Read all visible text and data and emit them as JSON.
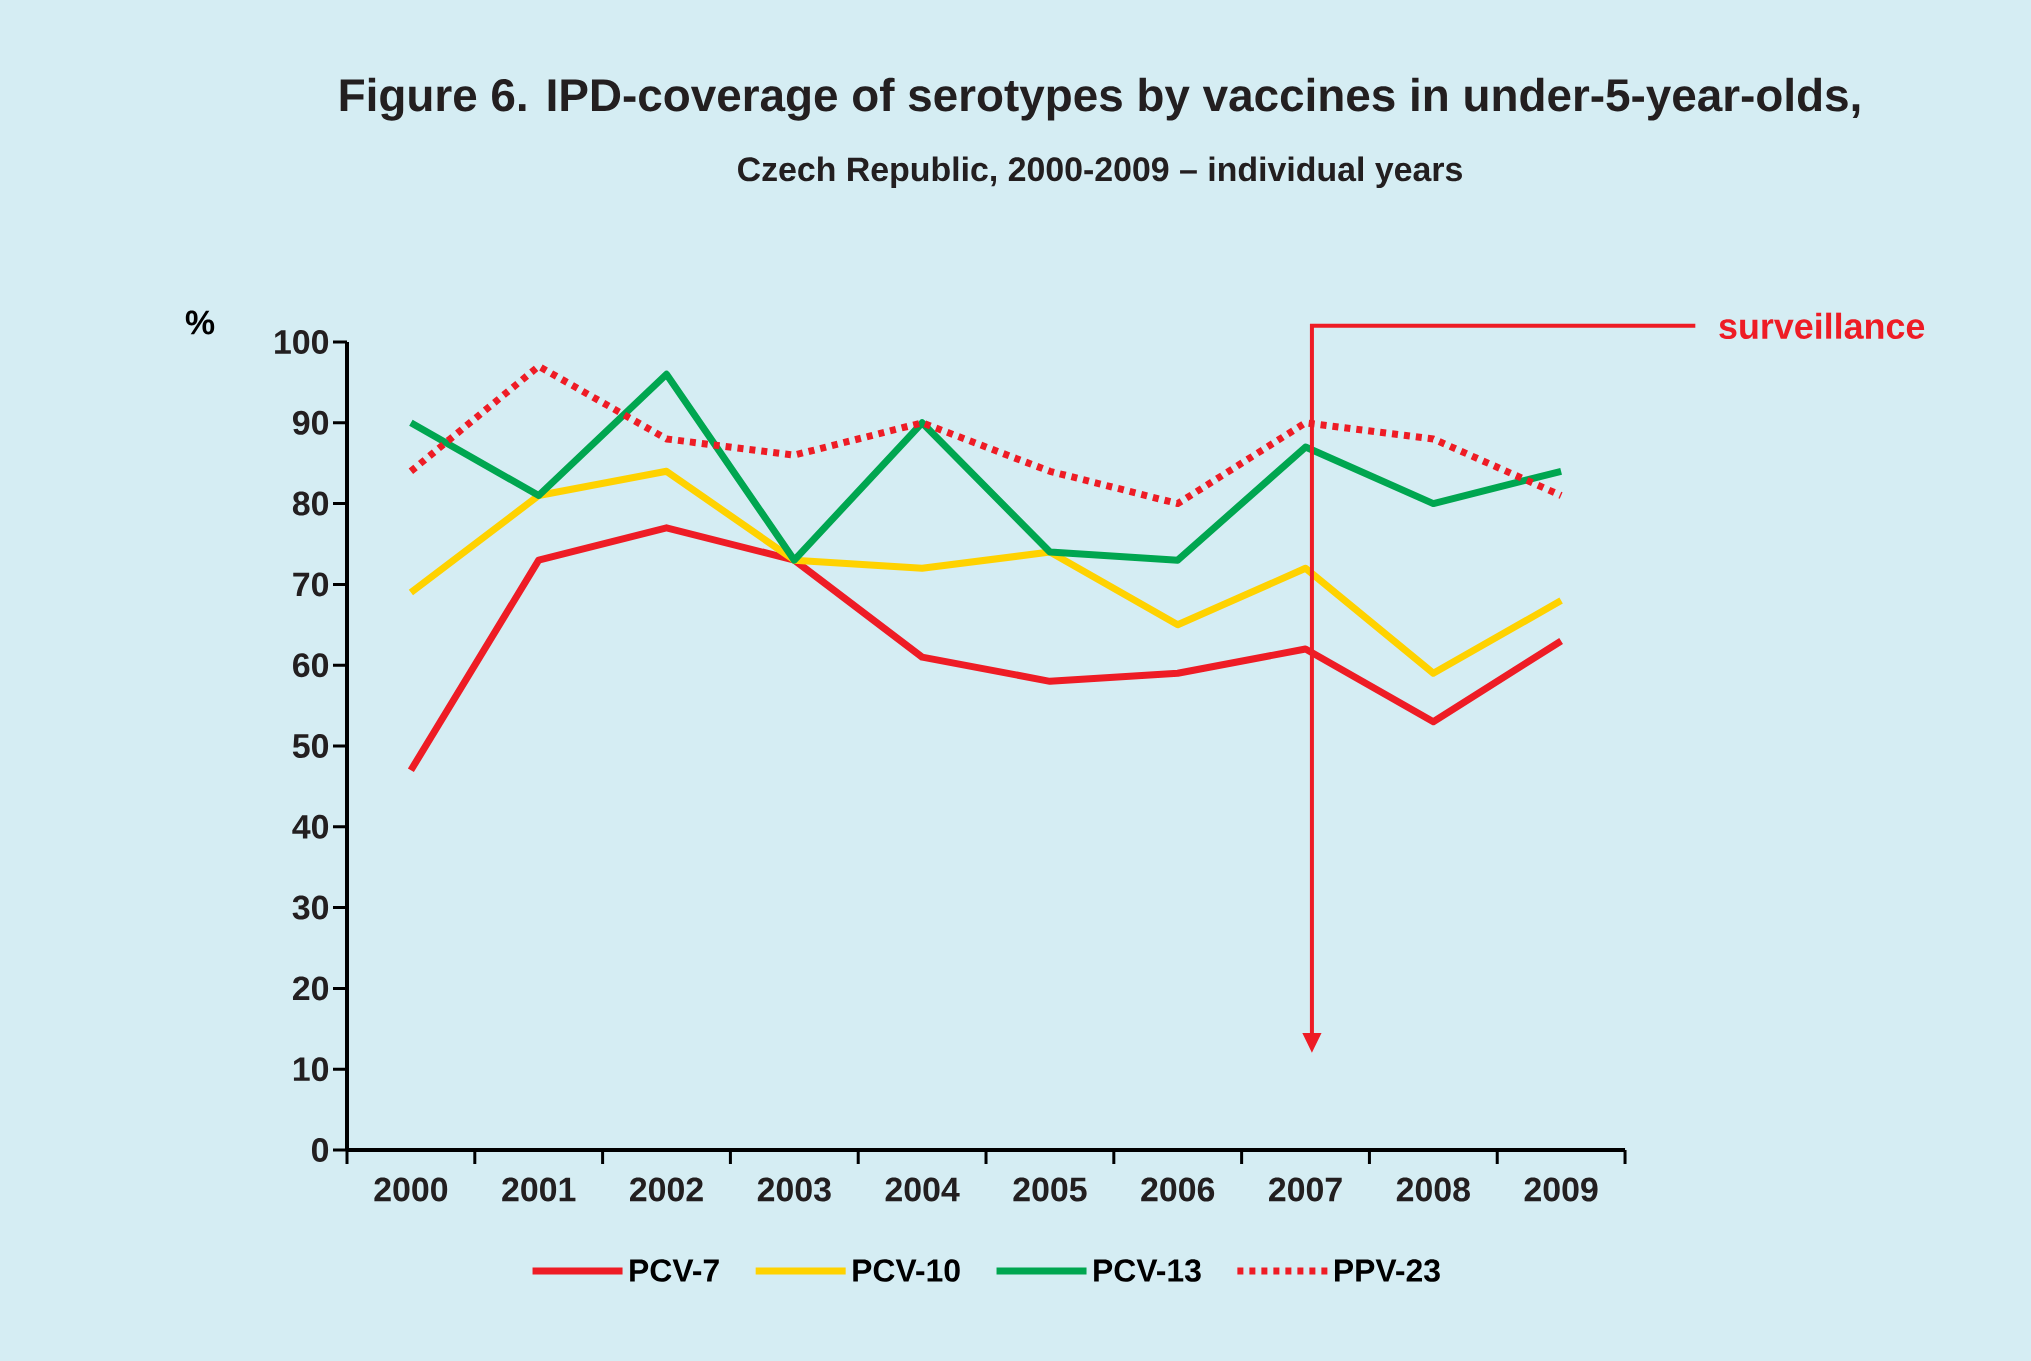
{
  "chart_data": {
    "type": "line",
    "title": "Figure 6. IPD-coverage of serotypes by vaccines in under-5-year-olds,",
    "subtitle": "Czech Republic, 2000-2009 – individual years",
    "ylabel": "%",
    "categories": [
      "2000",
      "2001",
      "2002",
      "2003",
      "2004",
      "2005",
      "2006",
      "2007",
      "2008",
      "2009"
    ],
    "series": [
      {
        "name": "PCV-7",
        "color": "#ee1c25",
        "values": [
          47,
          73,
          77,
          73,
          61,
          58,
          59,
          62,
          53,
          63
        ]
      },
      {
        "name": "PCV-10",
        "color": "#ffd200",
        "values": [
          69,
          81,
          84,
          73,
          72,
          74,
          65,
          72,
          59,
          68
        ]
      },
      {
        "name": "PCV-13",
        "color": "#00a650",
        "values": [
          90,
          81,
          96,
          73,
          90,
          74,
          73,
          87,
          80,
          84
        ]
      },
      {
        "name": "PPV-23",
        "color": "#ee1c25",
        "line_style": "dotted",
        "values": [
          84,
          97,
          88,
          86,
          90,
          84,
          80,
          90,
          88,
          81
        ]
      }
    ],
    "ylim": [
      0,
      100
    ],
    "yticks": [
      0,
      10,
      20,
      30,
      40,
      50,
      60,
      70,
      80,
      90,
      100
    ],
    "grid": false,
    "legend": "bottom",
    "annotations": [
      "surveillance"
    ]
  }
}
